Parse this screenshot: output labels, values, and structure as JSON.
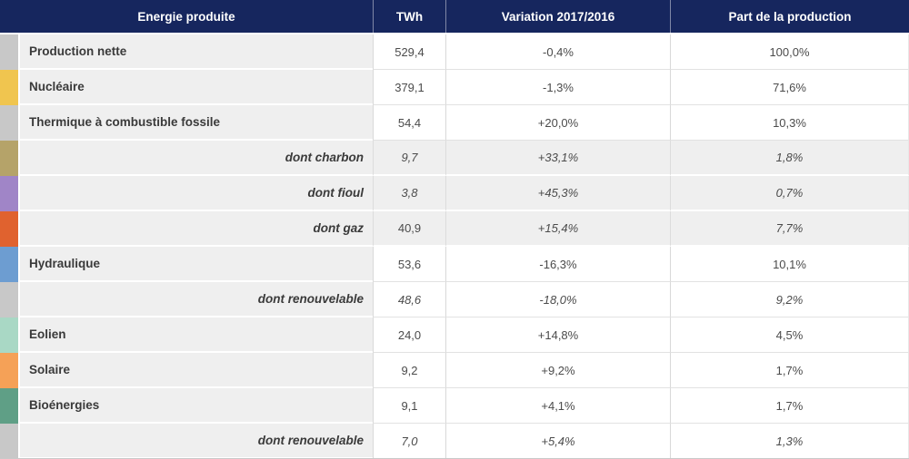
{
  "colors": {
    "header_bg": "#16265e",
    "header_text": "#ffffff",
    "label_cell_bg": "#efefef",
    "value_cell_bg": "#ffffff",
    "shaded_cell_bg": "#efefef",
    "label_text": "#3a3a3a",
    "value_text": "#4b4b4b",
    "grid_border": "#d9d9d9"
  },
  "table": {
    "header": {
      "energy": "Energie produite",
      "twh": "TWh",
      "variation": "Variation 2017/2016",
      "share": "Part de la production"
    },
    "rows": [
      {
        "label": "Production nette",
        "twh": "529,4",
        "variation": "-0,4%",
        "share": "100,0%",
        "tab_color": "#c8c8c8",
        "sub": false,
        "shaded": false
      },
      {
        "label": "Nucléaire",
        "twh": "379,1",
        "variation": "-1,3%",
        "share": "71,6%",
        "tab_color": "#f0c54f",
        "sub": false,
        "shaded": false
      },
      {
        "label": "Thermique à combustible fossile",
        "twh": "54,4",
        "variation": "+20,0%",
        "share": "10,3%",
        "tab_color": "#c8c8c8",
        "sub": false,
        "shaded": false
      },
      {
        "label": "dont charbon",
        "twh": "9,7",
        "variation": "+33,1%",
        "share": "1,8%",
        "tab_color": "#b5a369",
        "sub": true,
        "shaded": true
      },
      {
        "label": "dont fioul",
        "twh": "3,8",
        "variation": "+45,3%",
        "share": "0,7%",
        "tab_color": "#a085c7",
        "sub": true,
        "shaded": true
      },
      {
        "label": "dont gaz",
        "twh": "40,9",
        "variation": "+15,4%",
        "share": "7,7%",
        "tab_color": "#e0622f",
        "sub": true,
        "shaded": true,
        "twh_italic": false
      },
      {
        "label": "Hydraulique",
        "twh": "53,6",
        "variation": "-16,3%",
        "share": "10,1%",
        "tab_color": "#6d9dd1",
        "sub": false,
        "shaded": false
      },
      {
        "label": "dont renouvelable",
        "twh": "48,6",
        "variation": "-18,0%",
        "share": "9,2%",
        "tab_color": "#c8c8c8",
        "sub": true,
        "shaded": false
      },
      {
        "label": "Eolien",
        "twh": "24,0",
        "variation": "+14,8%",
        "share": "4,5%",
        "tab_color": "#a9d8c5",
        "sub": false,
        "shaded": false
      },
      {
        "label": "Solaire",
        "twh": "9,2",
        "variation": "+9,2%",
        "share": "1,7%",
        "tab_color": "#f5a157",
        "sub": false,
        "shaded": false
      },
      {
        "label": "Bioénergies",
        "twh": "9,1",
        "variation": "+4,1%",
        "share": "1,7%",
        "tab_color": "#5f9f86",
        "sub": false,
        "shaded": false
      },
      {
        "label": "dont renouvelable",
        "twh": "7,0",
        "variation": "+5,4%",
        "share": "1,3%",
        "tab_color": "#c8c8c8",
        "sub": true,
        "shaded": false
      }
    ]
  },
  "chart_data": {
    "type": "table",
    "title": "Energie produite",
    "columns": [
      "Energie produite",
      "TWh",
      "Variation 2017/2016",
      "Part de la production"
    ],
    "rows": [
      [
        "Production nette",
        529.4,
        -0.4,
        100.0
      ],
      [
        "Nucléaire",
        379.1,
        -1.3,
        71.6
      ],
      [
        "Thermique à combustible fossile",
        54.4,
        20.0,
        10.3
      ],
      [
        "dont charbon",
        9.7,
        33.1,
        1.8
      ],
      [
        "dont fioul",
        3.8,
        45.3,
        0.7
      ],
      [
        "dont gaz",
        40.9,
        15.4,
        7.7
      ],
      [
        "Hydraulique",
        53.6,
        -16.3,
        10.1
      ],
      [
        "dont renouvelable",
        48.6,
        -18.0,
        9.2
      ],
      [
        "Eolien",
        24.0,
        14.8,
        4.5
      ],
      [
        "Solaire",
        9.2,
        9.2,
        1.7
      ],
      [
        "Bioénergies",
        9.1,
        4.1,
        1.7
      ],
      [
        "dont renouvelable",
        7.0,
        5.4,
        1.3
      ]
    ],
    "units": {
      "TWh": "terawatt-hours",
      "Variation 2017/2016": "percent",
      "Part de la production": "percent"
    }
  }
}
